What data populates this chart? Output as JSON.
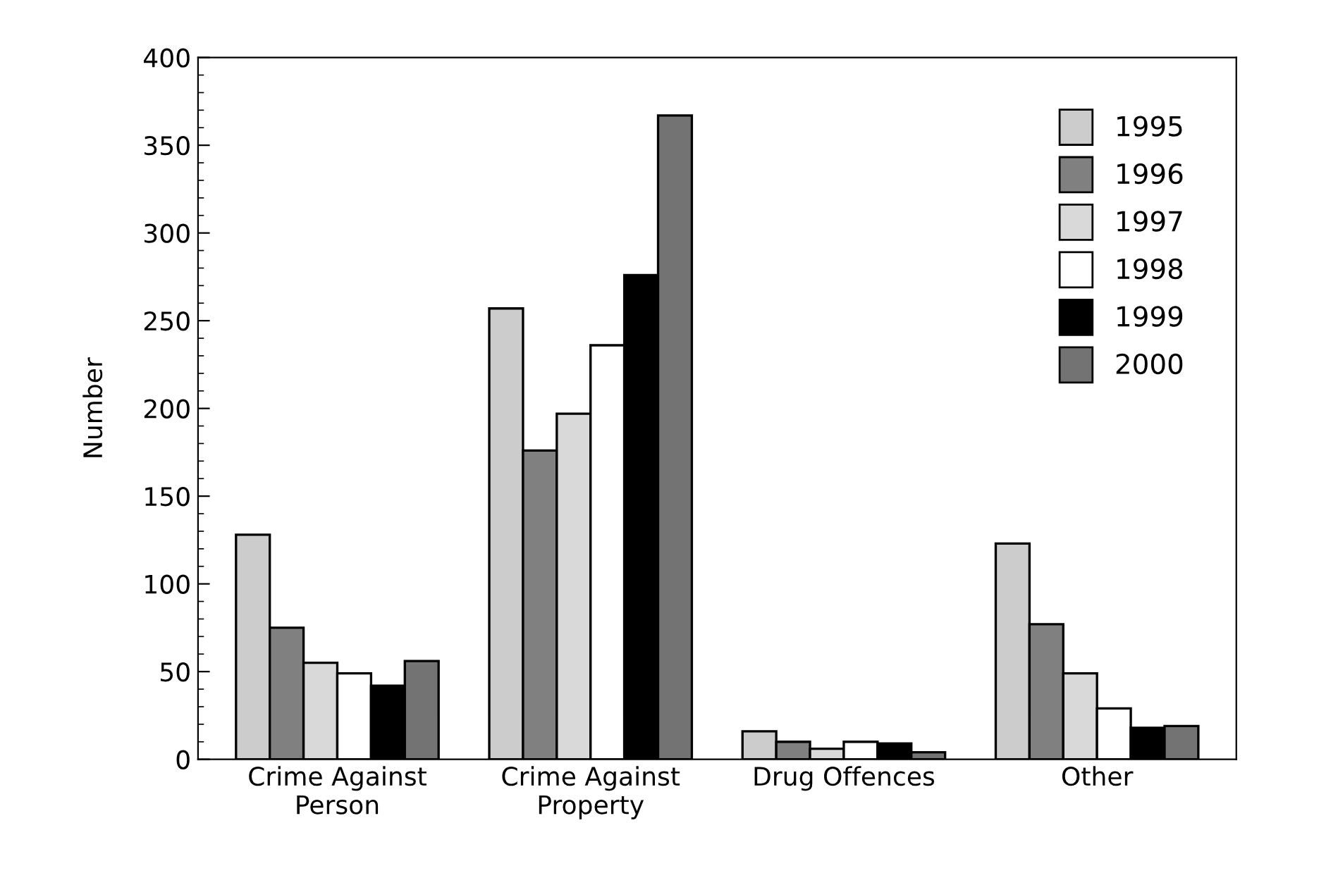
{
  "chart_data": {
    "type": "bar",
    "ylabel": "Number",
    "categories": [
      "Crime Against\nPerson",
      "Crime Against\nProperty",
      "Drug Offences",
      "Other"
    ],
    "series": [
      {
        "name": "1995",
        "color": "#cccccc",
        "values": [
          128,
          257,
          16,
          123
        ]
      },
      {
        "name": "1996",
        "color": "#808080",
        "values": [
          75,
          176,
          10,
          77
        ]
      },
      {
        "name": "1997",
        "color": "#d9d9d9",
        "values": [
          55,
          197,
          6,
          49
        ]
      },
      {
        "name": "1998",
        "color": "#ffffff",
        "values": [
          49,
          236,
          10,
          29
        ]
      },
      {
        "name": "1999",
        "color": "#000000",
        "values": [
          42,
          276,
          9,
          18
        ]
      },
      {
        "name": "2000",
        "color": "#737373",
        "values": [
          56,
          367,
          4,
          19
        ]
      }
    ],
    "ylim": [
      0,
      400
    ],
    "yticks": [
      0,
      50,
      100,
      150,
      200,
      250,
      300,
      350,
      400
    ],
    "grid": false,
    "legend": "top right"
  }
}
